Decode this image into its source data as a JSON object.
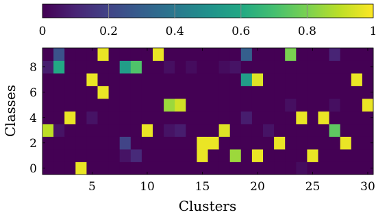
{
  "chart_data": {
    "type": "heatmap",
    "xlabel": "Clusters",
    "ylabel": "Classes",
    "x_range": [
      1,
      30
    ],
    "y_range": [
      0,
      9
    ],
    "x_ticks": [
      5,
      10,
      15,
      20,
      25,
      30
    ],
    "y_ticks": [
      0,
      2,
      4,
      6,
      8
    ],
    "colorbar": {
      "min": 0,
      "max": 1,
      "ticks": [
        0,
        0.2,
        0.4,
        0.6,
        0.8,
        1
      ],
      "tick_labels": [
        "0",
        "0.2",
        "0.4",
        "0.6",
        "0.8",
        "1"
      ],
      "colormap": "viridis",
      "placement": "top"
    },
    "matrix": [
      [
        0,
        0,
        0,
        0.97,
        0,
        0,
        0,
        0,
        0,
        0,
        0,
        0,
        0,
        0,
        0,
        0,
        0,
        0,
        0,
        0,
        0,
        0,
        0,
        0.03,
        0,
        0,
        0,
        0,
        0,
        0
      ],
      [
        0,
        0,
        0,
        0,
        0,
        0,
        0,
        0.05,
        0.12,
        0,
        0,
        0,
        0,
        0,
        0.97,
        0,
        0,
        0.85,
        0,
        0.97,
        0,
        0,
        0,
        0,
        0.97,
        0,
        0,
        0,
        0,
        0
      ],
      [
        0,
        0,
        0,
        0,
        0,
        0,
        0,
        0.2,
        0,
        0,
        0,
        0,
        0,
        0,
        0.97,
        0.97,
        0,
        0,
        0,
        0,
        0,
        0.97,
        0,
        0,
        0,
        0,
        0,
        0.97,
        0,
        0
      ],
      [
        0.9,
        0.05,
        0,
        0,
        0,
        0,
        0,
        0,
        0,
        0.97,
        0,
        0.05,
        0.08,
        0,
        0,
        0,
        0.95,
        0,
        0,
        0,
        0.05,
        0,
        0,
        0,
        0,
        0,
        0.75,
        0,
        0,
        0
      ],
      [
        0,
        0,
        0.97,
        0,
        0.05,
        0,
        0,
        0,
        0,
        0,
        0,
        0,
        0,
        0,
        0,
        0,
        0,
        0,
        0.08,
        0,
        0,
        0,
        0,
        0.97,
        0,
        0.97,
        0,
        0,
        0,
        0
      ],
      [
        0,
        0,
        0,
        0,
        0,
        0,
        0,
        0,
        0,
        0,
        0,
        0.85,
        0.93,
        0,
        0,
        0,
        0,
        0,
        0,
        0,
        0,
        0,
        0.04,
        0,
        0,
        0,
        0.04,
        0,
        0,
        0.97
      ],
      [
        0,
        0,
        0,
        0,
        0,
        0.97,
        0,
        0,
        0,
        0,
        0,
        0,
        0,
        0,
        0,
        0,
        0,
        0,
        0,
        0,
        0,
        0,
        0,
        0,
        0,
        0,
        0,
        0,
        0,
        0
      ],
      [
        0,
        0,
        0,
        0,
        0.97,
        0,
        0,
        0,
        0,
        0,
        0,
        0,
        0,
        0,
        0,
        0,
        0,
        0,
        0.55,
        0.95,
        0,
        0,
        0,
        0,
        0,
        0,
        0,
        0,
        0.97,
        0
      ],
      [
        0.08,
        0.6,
        0,
        0,
        0,
        0,
        0,
        0.55,
        0.72,
        0,
        0,
        0.04,
        0,
        0.03,
        0,
        0,
        0.03,
        0.05,
        0,
        0,
        0,
        0,
        0,
        0,
        0,
        0,
        0,
        0,
        0,
        0
      ],
      [
        0,
        0.25,
        0,
        0,
        0,
        0.97,
        0,
        0,
        0,
        0,
        0.97,
        0,
        0,
        0,
        0,
        0,
        0,
        0,
        0.3,
        0,
        0,
        0,
        0.8,
        0,
        0,
        0,
        0.1,
        0,
        0,
        0
      ]
    ]
  }
}
